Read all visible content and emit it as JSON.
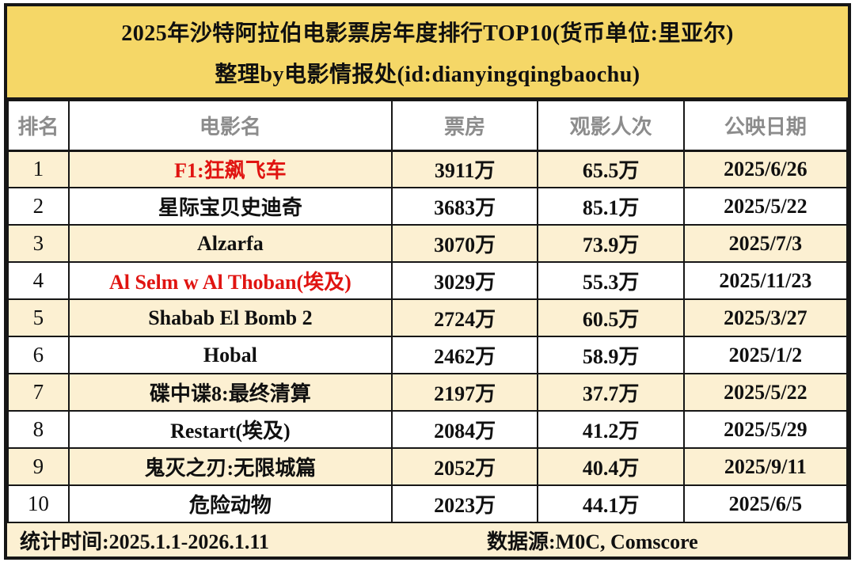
{
  "title": {
    "line1": "2025年沙特阿拉伯电影票房年度排行TOP10(货币单位:里亚尔)",
    "line2": "整理by电影情报处(id:dianyingqingbaochu)"
  },
  "chart_data": {
    "type": "table",
    "title": "2025年沙特阿拉伯电影票房年度排行TOP10(货币单位:里亚尔)",
    "columns": [
      "排名",
      "电影名",
      "票房",
      "观影人次",
      "公映日期"
    ],
    "rows": [
      {
        "rank": "1",
        "name": "F1:狂飙飞车",
        "box_office": "3911万",
        "admissions": "65.5万",
        "release_date": "2025/6/26",
        "name_red": true
      },
      {
        "rank": "2",
        "name": "星际宝贝史迪奇",
        "box_office": "3683万",
        "admissions": "85.1万",
        "release_date": "2025/5/22",
        "name_red": false
      },
      {
        "rank": "3",
        "name": "Alzarfa",
        "box_office": "3070万",
        "admissions": "73.9万",
        "release_date": "2025/7/3",
        "name_red": false
      },
      {
        "rank": "4",
        "name": "Al Selm w Al Thoban(埃及)",
        "box_office": "3029万",
        "admissions": "55.3万",
        "release_date": "2025/11/23",
        "name_red": true
      },
      {
        "rank": "5",
        "name": "Shabab El Bomb 2",
        "box_office": "2724万",
        "admissions": "60.5万",
        "release_date": "2025/3/27",
        "name_red": false
      },
      {
        "rank": "6",
        "name": "Hobal",
        "box_office": "2462万",
        "admissions": "58.9万",
        "release_date": "2025/1/2",
        "name_red": false
      },
      {
        "rank": "7",
        "name": "碟中谍8:最终清算",
        "box_office": "2197万",
        "admissions": "37.7万",
        "release_date": "2025/5/22",
        "name_red": false
      },
      {
        "rank": "8",
        "name": "Restart(埃及)",
        "box_office": "2084万",
        "admissions": "41.2万",
        "release_date": "2025/5/29",
        "name_red": false
      },
      {
        "rank": "9",
        "name": "鬼灭之刃:无限城篇",
        "box_office": "2052万",
        "admissions": "40.4万",
        "release_date": "2025/9/11",
        "name_red": false
      },
      {
        "rank": "10",
        "name": "危险动物",
        "box_office": "2023万",
        "admissions": "44.1万",
        "release_date": "2025/6/5",
        "name_red": false
      }
    ]
  },
  "footer": {
    "stats_period": "统计时间:2025.1.1-2026.1.11",
    "data_source": "数据源:M0C, Comscore"
  },
  "colors": {
    "title_bg": "#F5D767",
    "row_alt_bg": "#FCF0D2",
    "highlight_red": "#E01411",
    "header_text": "#8C8C8C",
    "border": "#161616"
  }
}
